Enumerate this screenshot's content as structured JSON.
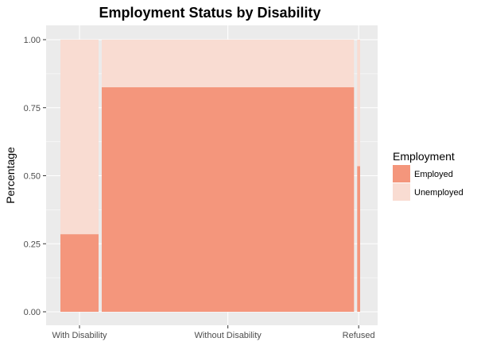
{
  "chart_data": {
    "type": "bar",
    "subtype": "mosaic",
    "title": "Employment Status by Disability",
    "xlabel": "",
    "ylabel": "Percentage",
    "ylim": [
      0,
      1
    ],
    "yticks": [
      "0.00",
      "0.25",
      "0.50",
      "0.75",
      "1.00"
    ],
    "yticks_values": [
      0,
      0.25,
      0.5,
      0.75,
      1.0
    ],
    "categories": [
      "With Disability",
      "Without Disability",
      "Refused"
    ],
    "category_shares": [
      0.13,
      0.86,
      0.01
    ],
    "series": [
      {
        "name": "Employed",
        "values": [
          0.285,
          0.825,
          0.535
        ]
      },
      {
        "name": "Unemployed",
        "values": [
          0.715,
          0.175,
          0.465
        ]
      }
    ],
    "legend": {
      "title": "Employment",
      "position": "right",
      "entries": [
        "Employed",
        "Unemployed"
      ]
    },
    "colors": {
      "Employed": "#f4967c",
      "Unemployed": "#f9dcd2",
      "panel": "#ebebeb",
      "grid": "#ffffff"
    },
    "grid": true
  }
}
